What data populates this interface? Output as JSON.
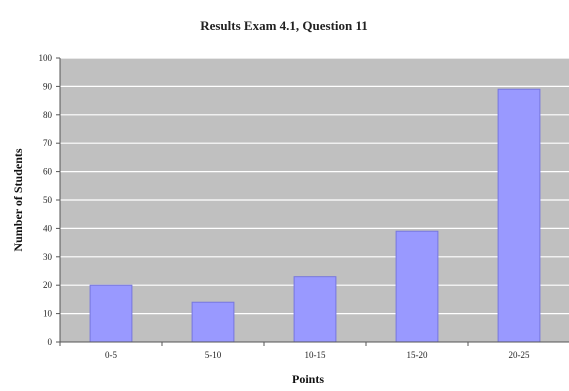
{
  "chart_data": {
    "type": "bar",
    "title": "Results Exam 4.1, Question 11",
    "xlabel": "Points",
    "ylabel": "Number of Students",
    "categories": [
      "0-5",
      "5-10",
      "10-15",
      "15-20",
      "20-25"
    ],
    "series": [
      {
        "values": [
          20,
          14,
          23,
          39,
          89
        ]
      }
    ],
    "ylim": [
      0,
      100
    ],
    "yticks": [
      0,
      10,
      20,
      30,
      40,
      50,
      60,
      70,
      80,
      90,
      100
    ],
    "grid": true,
    "legend": "none",
    "colors": {
      "bar": "#9999ff",
      "bar_stroke": "#7777dd",
      "plot_background": "#c0c0c0",
      "grid": "#ffffff",
      "axis": "#555555"
    }
  }
}
